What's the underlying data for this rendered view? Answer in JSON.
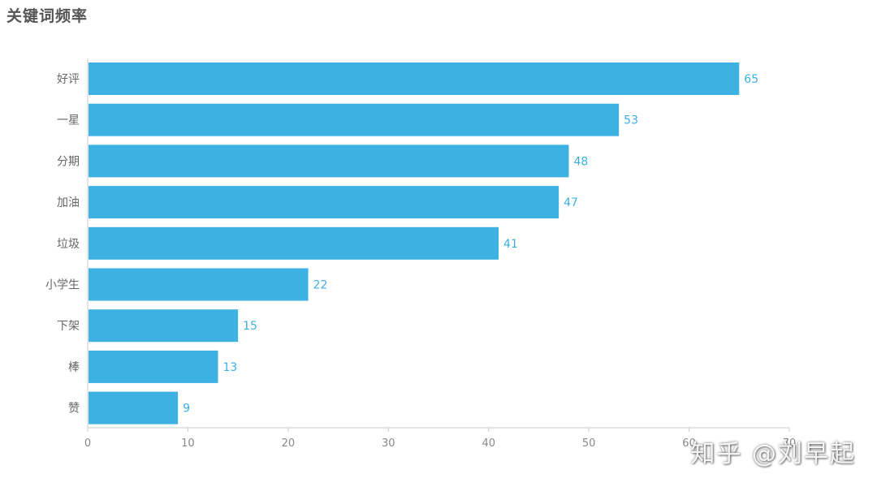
{
  "chart_data": {
    "type": "bar",
    "orientation": "horizontal",
    "title": "关键词频率",
    "categories": [
      "好评",
      "一星",
      "分期",
      "加油",
      "垃圾",
      "小学生",
      "下架",
      "棒",
      "赞"
    ],
    "values": [
      65,
      53,
      48,
      47,
      41,
      22,
      15,
      13,
      9
    ],
    "xlim": [
      0,
      70
    ],
    "xticks": [
      0,
      10,
      20,
      30,
      40,
      50,
      60,
      70
    ],
    "grid": false,
    "data_labels": true
  },
  "colors": {
    "bar": "#3eb1e3",
    "value_label": "#3ab0e2",
    "axis": "#cccccc"
  },
  "watermark": "知乎 @刘早起"
}
